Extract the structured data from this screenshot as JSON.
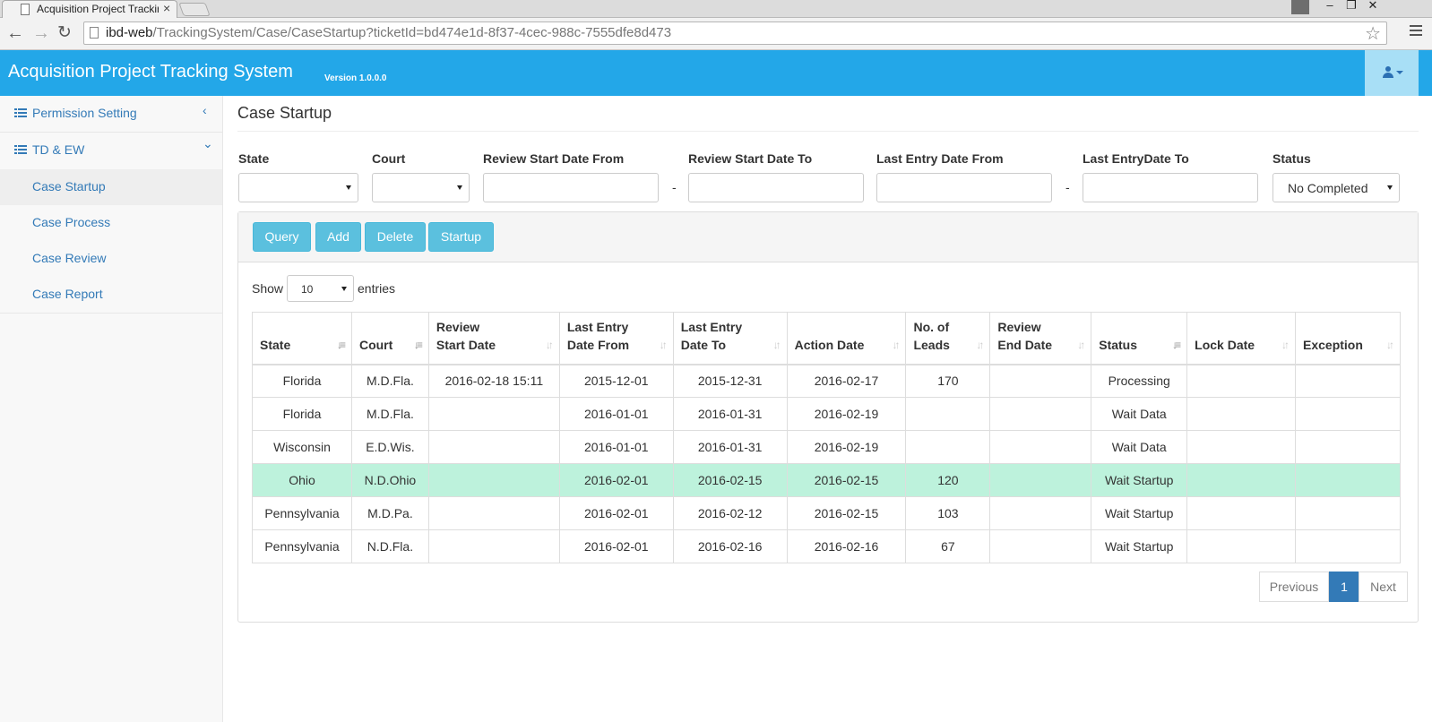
{
  "browser": {
    "tab_title": "Acquisition Project Trackir",
    "url_host": "ibd-web",
    "url_path": "/TrackingSystem/Case/CaseStartup?ticketId=bd474e1d-8f37-4cec-988c-7555dfe8d473"
  },
  "header": {
    "title": "Acquisition Project Tracking System",
    "version": "Version 1.0.0.0"
  },
  "sidebar": {
    "groups": [
      {
        "label": "Permission Setting",
        "arrow": "‹"
      },
      {
        "label": "TD & EW",
        "arrow": "⌄"
      }
    ],
    "items": [
      {
        "label": "Case Startup",
        "active": true
      },
      {
        "label": "Case Process"
      },
      {
        "label": "Case Review"
      },
      {
        "label": "Case Report"
      }
    ]
  },
  "page": {
    "title": "Case Startup"
  },
  "filters": {
    "state_label": "State",
    "court_label": "Court",
    "review_from_label": "Review Start Date From",
    "review_to_label": "Review Start Date To",
    "entry_from_label": "Last Entry Date From",
    "entry_to_label": "Last EntryDate To",
    "status_label": "Status",
    "status_value": "No Completed",
    "dash": "-"
  },
  "toolbar": {
    "query": "Query",
    "add": "Add",
    "delete": "Delete",
    "startup": "Startup"
  },
  "table": {
    "show_label": "Show",
    "page_length": "10",
    "entries_label": "entries",
    "columns": [
      {
        "l1": "",
        "l2": "State"
      },
      {
        "l1": "",
        "l2": "Court"
      },
      {
        "l1": "Review",
        "l2": "Start Date"
      },
      {
        "l1": "Last Entry",
        "l2": "Date From"
      },
      {
        "l1": "Last Entry",
        "l2": "Date To"
      },
      {
        "l1": "",
        "l2": "Action Date"
      },
      {
        "l1": "No. of",
        "l2": "Leads"
      },
      {
        "l1": "Review",
        "l2": "End Date"
      },
      {
        "l1": "",
        "l2": "Status"
      },
      {
        "l1": "",
        "l2": "Lock Date"
      },
      {
        "l1": "",
        "l2": "Exception"
      }
    ],
    "rows": [
      [
        "Florida",
        "M.D.Fla.",
        "2016-02-18 15:11",
        "2015-12-01",
        "2015-12-31",
        "2016-02-17",
        "170",
        "",
        "Processing",
        "",
        ""
      ],
      [
        "Florida",
        "M.D.Fla.",
        "",
        "2016-01-01",
        "2016-01-31",
        "2016-02-19",
        "",
        "",
        "Wait Data",
        "",
        ""
      ],
      [
        "Wisconsin",
        "E.D.Wis.",
        "",
        "2016-01-01",
        "2016-01-31",
        "2016-02-19",
        "",
        "",
        "Wait Data",
        "",
        ""
      ],
      [
        "Ohio",
        "N.D.Ohio",
        "",
        "2016-02-01",
        "2016-02-15",
        "2016-02-15",
        "120",
        "",
        "Wait Startup",
        "",
        ""
      ],
      [
        "Pennsylvania",
        "M.D.Pa.",
        "",
        "2016-02-01",
        "2016-02-12",
        "2016-02-15",
        "103",
        "",
        "Wait Startup",
        "",
        ""
      ],
      [
        "Pennsylvania",
        "N.D.Fla.",
        "",
        "2016-02-01",
        "2016-02-16",
        "2016-02-16",
        "67",
        "",
        "Wait Startup",
        "",
        ""
      ]
    ],
    "selected_row": 3
  },
  "pagination": {
    "previous": "Previous",
    "current": "1",
    "next": "Next"
  },
  "colors": {
    "header": "#23a7e8",
    "button": "#5bc0de",
    "selected_row": "#bdf2dc",
    "link": "#337ab7"
  }
}
